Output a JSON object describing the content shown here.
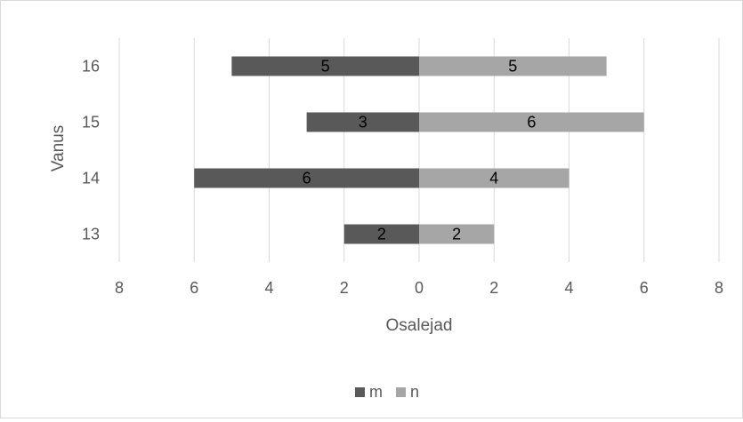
{
  "chart_data": {
    "type": "bar",
    "orientation": "horizontal",
    "layout": "population-pyramid",
    "categories": [
      "13",
      "14",
      "15",
      "16"
    ],
    "series": [
      {
        "name": "m",
        "values": [
          2,
          6,
          3,
          5
        ],
        "color": "#595959",
        "side": "left"
      },
      {
        "name": "n",
        "values": [
          2,
          4,
          6,
          5
        ],
        "color": "#a6a6a6",
        "side": "right"
      }
    ],
    "xlabel": "Osalejad",
    "ylabel": "Vanus",
    "xlim": [
      -8,
      8
    ],
    "x_ticks": [
      -8,
      -6,
      -4,
      -2,
      0,
      2,
      4,
      6,
      8
    ],
    "x_tick_labels": [
      "8",
      "6",
      "4",
      "2",
      "0",
      "2",
      "4",
      "6",
      "8"
    ],
    "grid": "vertical",
    "legend_position": "bottom",
    "data_labels": true
  }
}
